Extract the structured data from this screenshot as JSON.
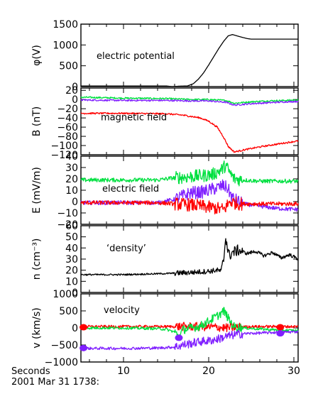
{
  "chart_data": [
    {
      "type": "line",
      "ylabel": "φ(V)",
      "annotation": "electric potential",
      "xlim": [
        5,
        30.5
      ],
      "ylim": [
        0,
        1500
      ],
      "yticks": [
        "0",
        "500",
        "1000",
        "1500"
      ],
      "series": [
        {
          "color": "#000000",
          "x": [
            5,
            10,
            15,
            15.7,
            16.5,
            17.5,
            18.2,
            18.8,
            19.4,
            20.0,
            20.6,
            21.2,
            21.8,
            22.3,
            22.8,
            23.3,
            23.8,
            24.2,
            24.6,
            25.0,
            30.5
          ],
          "values": [
            15,
            15,
            15,
            0,
            10,
            15,
            70,
            180,
            330,
            520,
            720,
            920,
            1100,
            1220,
            1250,
            1220,
            1190,
            1170,
            1150,
            1140,
            1140
          ]
        }
      ]
    },
    {
      "type": "line",
      "ylabel": "B (nT)",
      "annotation": "magnetic field",
      "xlim": [
        5,
        30.5
      ],
      "ylim": [
        -120,
        25
      ],
      "yticks": [
        "20",
        "0",
        "−20",
        "−40",
        "−60",
        "−80",
        "−100",
        "−120"
      ],
      "series": [
        {
          "color": "#00e040",
          "x": [
            5,
            10,
            15,
            18,
            20,
            22,
            23,
            25,
            27,
            29,
            30.5
          ],
          "values": [
            5,
            3,
            2,
            0,
            0,
            -2,
            -8,
            -5,
            -3,
            -2,
            -1
          ]
        },
        {
          "color": "#8020ff",
          "x": [
            5,
            10,
            15,
            18,
            20,
            22,
            23,
            25,
            27,
            29,
            30.5
          ],
          "values": [
            -1,
            -2,
            -2,
            -3,
            -3,
            -6,
            -12,
            -9,
            -7,
            -5,
            -4
          ]
        },
        {
          "color": "#ff0000",
          "x": [
            5,
            10,
            15,
            17,
            19,
            20,
            21,
            21.7,
            22.3,
            23,
            24,
            26,
            28,
            30.5
          ],
          "values": [
            -30,
            -30,
            -31,
            -34,
            -40,
            -47,
            -60,
            -80,
            -102,
            -114,
            -110,
            -103,
            -97,
            -90
          ]
        }
      ]
    },
    {
      "type": "line",
      "ylabel": "E (mV/m)",
      "annotation": "electric field",
      "xlim": [
        5,
        30.5
      ],
      "ylim": [
        -20,
        40
      ],
      "yticks": [
        "40",
        "30",
        "20",
        "10",
        "0",
        "−10",
        "−20"
      ],
      "series": [
        {
          "color": "#00e040",
          "x": [
            5,
            10,
            14,
            16,
            18,
            19.5,
            20.5,
            21.5,
            22,
            22.5,
            23,
            24,
            26,
            28,
            30.5
          ],
          "values": [
            19,
            19,
            19,
            21,
            22,
            23,
            24,
            28,
            32,
            25,
            20,
            19,
            18,
            18,
            18
          ]
        },
        {
          "color": "#8020ff",
          "x": [
            5,
            10,
            14,
            16,
            17,
            18,
            19,
            20,
            21,
            21.7,
            22.2,
            22.8,
            24,
            26,
            28,
            30.5
          ],
          "values": [
            -1,
            -1,
            -1,
            2,
            5,
            8,
            8,
            10,
            12,
            14,
            12,
            3,
            -2,
            -4,
            -6,
            -7
          ]
        },
        {
          "color": "#ff0000",
          "x": [
            5,
            10,
            14,
            16,
            18,
            20,
            21,
            21.8,
            22.5,
            23.5,
            25,
            28,
            30.5
          ],
          "values": [
            -1,
            -1,
            -1,
            -2,
            -3,
            -5,
            -6,
            -7,
            0,
            -2,
            -2,
            -2,
            -2
          ]
        }
      ]
    },
    {
      "type": "line",
      "ylabel": "n (cm⁻³)",
      "annotation": "‘density’",
      "xlim": [
        5,
        30.5
      ],
      "ylim": [
        0,
        60
      ],
      "yticks": [
        "0",
        "10",
        "20",
        "30",
        "40",
        "50",
        "60"
      ],
      "series": [
        {
          "color": "#000000",
          "x": [
            5,
            10,
            15,
            18,
            20,
            21,
            21.5,
            21.8,
            22.0,
            22.2,
            22.4,
            22.8,
            23.5,
            24.5,
            25.5,
            26.5,
            27.5,
            28.5,
            29.5,
            30.5
          ],
          "values": [
            16,
            16,
            17,
            18,
            19,
            20,
            19,
            32,
            51,
            40,
            33,
            36,
            38,
            35,
            37,
            33,
            36,
            31,
            34,
            30
          ]
        }
      ]
    },
    {
      "type": "line",
      "ylabel": "v (km/s)",
      "annotation": "velocity",
      "xlim": [
        5,
        30.5
      ],
      "ylim": [
        -1000,
        1000
      ],
      "yticks": [
        "1000",
        "500",
        "0",
        "−500",
        "−1000"
      ],
      "series": [
        {
          "color": "#ff0000",
          "x": [
            5,
            10,
            15,
            18,
            20,
            21,
            22,
            23,
            25,
            28,
            30.5
          ],
          "values": [
            40,
            40,
            40,
            40,
            30,
            20,
            0,
            20,
            40,
            40,
            40
          ]
        },
        {
          "color": "#00e040",
          "x": [
            5,
            10,
            14,
            15,
            16,
            16.5,
            17,
            18,
            19,
            20,
            21,
            21.8,
            22.3,
            23,
            24,
            26,
            28,
            30.5
          ],
          "values": [
            0,
            0,
            -20,
            -40,
            -120,
            -250,
            -50,
            0,
            50,
            200,
            350,
            500,
            280,
            30,
            0,
            -30,
            -60,
            -80
          ]
        },
        {
          "color": "#8020ff",
          "x": [
            5,
            10,
            14,
            16,
            17,
            18,
            19,
            20,
            21,
            22,
            23,
            24,
            26,
            28,
            30.5
          ],
          "values": [
            -600,
            -600,
            -590,
            -560,
            -500,
            -450,
            -400,
            -380,
            -330,
            -260,
            -200,
            -170,
            -150,
            -130,
            -110
          ]
        }
      ],
      "markers": [
        {
          "color": "#ff0000",
          "x": 5.3,
          "y": 20
        },
        {
          "color": "#8020ff",
          "x": 5.3,
          "y": -590
        },
        {
          "color": "#8020ff",
          "x": 16.5,
          "y": -290
        },
        {
          "color": "#ff0000",
          "x": 28.4,
          "y": 20
        },
        {
          "color": "#8020ff",
          "x": 28.4,
          "y": -160
        }
      ]
    }
  ],
  "x_axis": {
    "label": "Seconds",
    "date_label": "2001 Mar 31 1738:",
    "ticks": [
      "10",
      "20",
      "30"
    ],
    "tick_values": [
      10,
      20,
      30
    ]
  }
}
